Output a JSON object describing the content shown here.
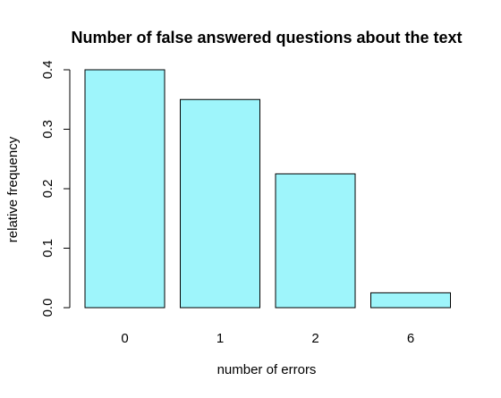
{
  "chart_data": {
    "type": "bar",
    "title": "Number of false answered questions about the text",
    "xlabel": "number of errors",
    "ylabel": "relative frequency",
    "categories": [
      "0",
      "1",
      "2",
      "6"
    ],
    "values": [
      0.4,
      0.35,
      0.225,
      0.025
    ],
    "ylim": [
      0,
      0.4
    ],
    "yticks": [
      0.0,
      0.1,
      0.2,
      0.3,
      0.4
    ],
    "ytick_labels": [
      "0.0",
      "0.1",
      "0.2",
      "0.3",
      "0.4"
    ],
    "bar_color": "#9ef5fb",
    "grid": false,
    "legend": "none"
  }
}
